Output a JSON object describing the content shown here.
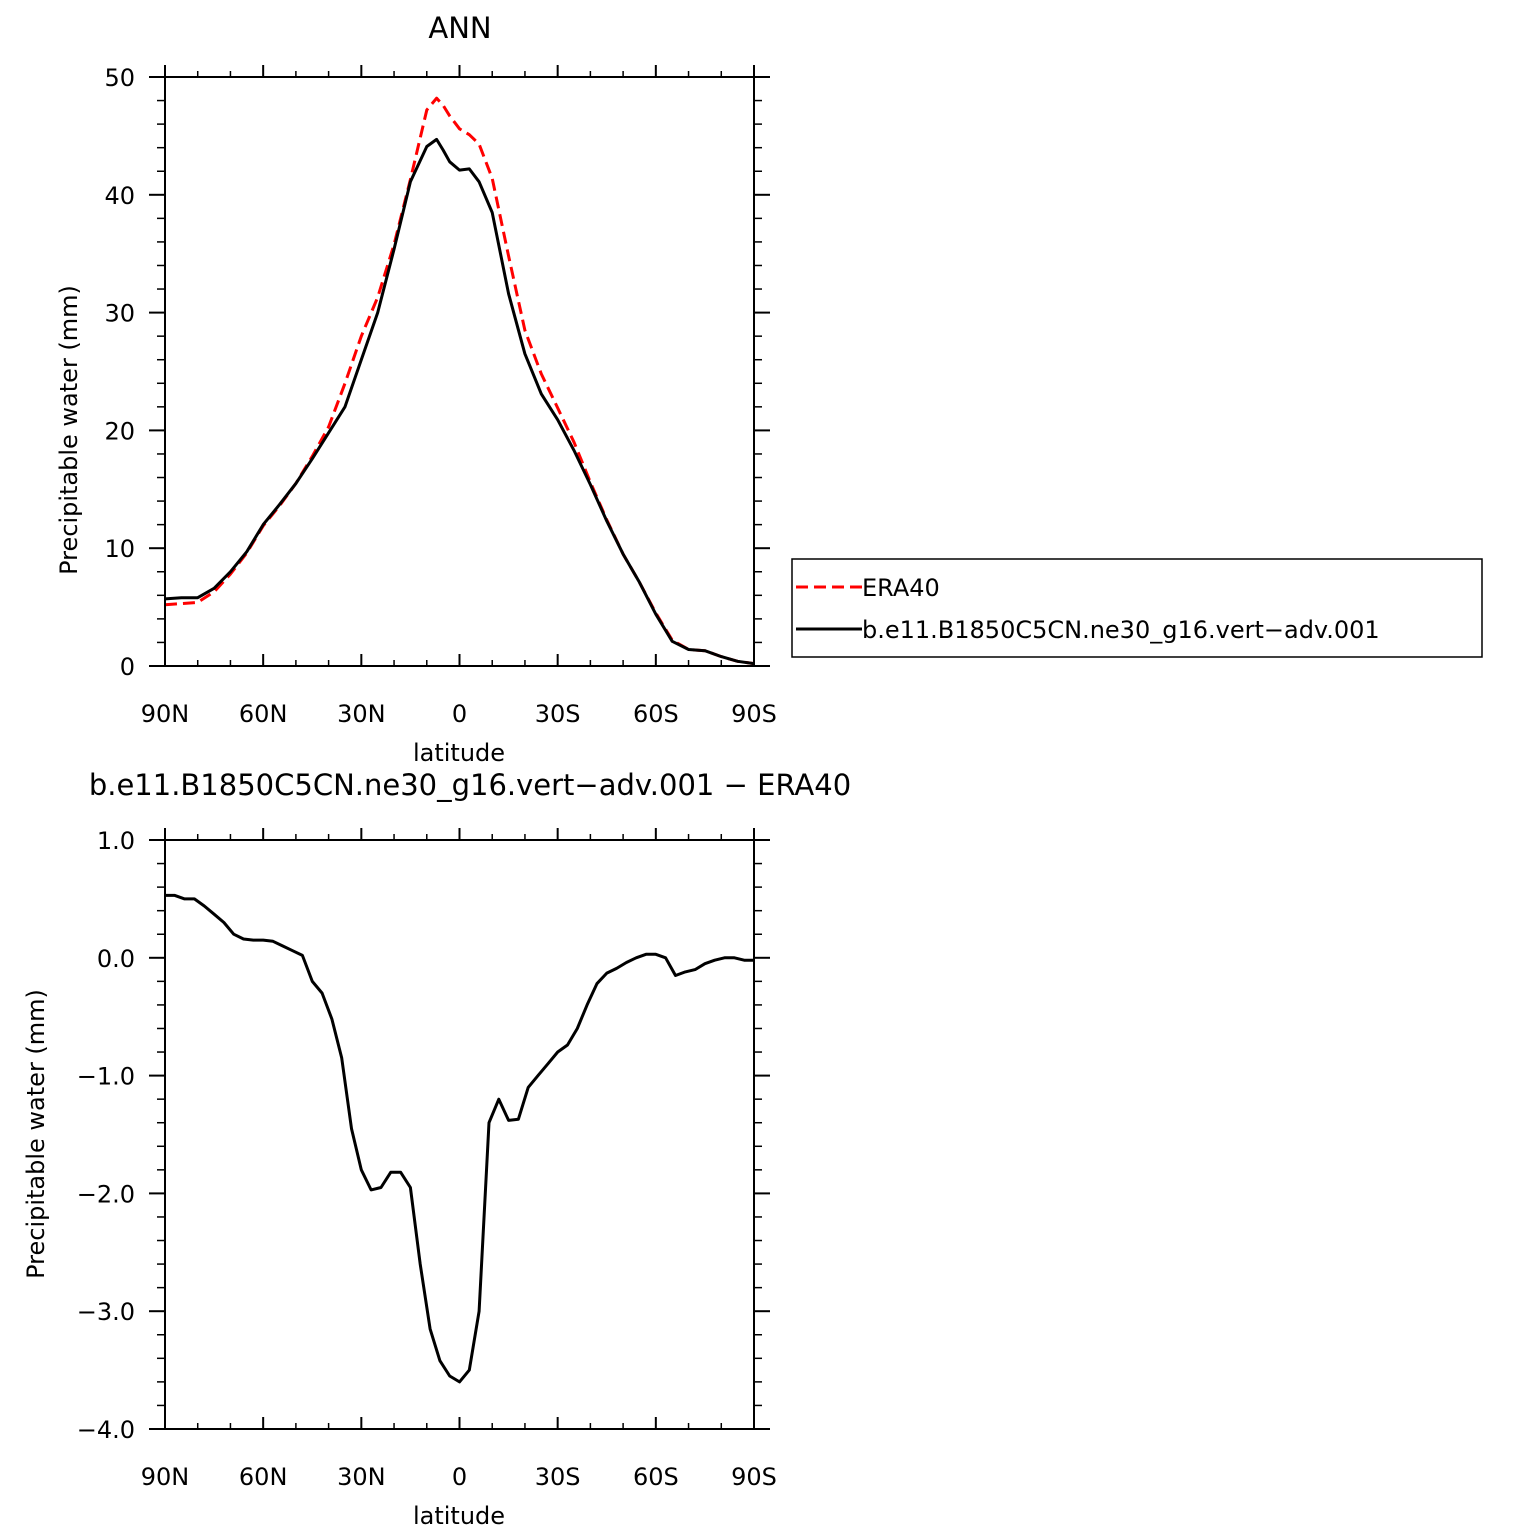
{
  "chart_data": [
    {
      "type": "line",
      "title": "ANN",
      "xlabel": "latitude",
      "ylabel": "Precipitable water (mm)",
      "xlim": [
        90,
        -90
      ],
      "ylim": [
        0,
        50
      ],
      "xticks": [
        90,
        60,
        30,
        0,
        -30,
        -60,
        -90
      ],
      "xtick_labels": [
        "90N",
        "60N",
        "30N",
        "0",
        "30S",
        "60S",
        "90S"
      ],
      "yticks": [
        0,
        10,
        20,
        30,
        40,
        50
      ],
      "ytick_labels": [
        "0",
        "10",
        "20",
        "30",
        "40",
        "50"
      ],
      "legend": "outside right",
      "grid": false,
      "series": [
        {
          "name": "ERA40",
          "color": "#ff0000",
          "dash": "dashed",
          "x": [
            90,
            85,
            80,
            75,
            70,
            65,
            60,
            55,
            50,
            45,
            40,
            35,
            30,
            25,
            20,
            15,
            10,
            7,
            5,
            3,
            0,
            -3,
            -6,
            -10,
            -15,
            -20,
            -25,
            -30,
            -35,
            -40,
            -45,
            -50,
            -55,
            -60,
            -65,
            -70,
            -75,
            -80,
            -85,
            -90
          ],
          "values": [
            5.2,
            5.3,
            5.4,
            6.3,
            7.8,
            9.6,
            11.9,
            13.6,
            15.5,
            17.8,
            20.3,
            24.0,
            28.0,
            31.3,
            35.8,
            41.3,
            47.2,
            48.2,
            47.6,
            46.7,
            45.6,
            45.1,
            44.3,
            41.4,
            34.8,
            28.5,
            24.8,
            21.9,
            19.0,
            15.6,
            12.4,
            9.5,
            7.1,
            4.5,
            2.2,
            1.4,
            1.3,
            0.8,
            0.4,
            0.2
          ]
        },
        {
          "name": "b.e11.B1850C5CN.ne30_g16.vert−adv.001",
          "color": "#000000",
          "dash": "solid",
          "x": [
            90,
            85,
            80,
            75,
            70,
            65,
            60,
            55,
            50,
            45,
            40,
            35,
            30,
            25,
            20,
            15,
            10,
            7,
            5,
            3,
            0,
            -3,
            -6,
            -10,
            -15,
            -20,
            -25,
            -30,
            -35,
            -40,
            -45,
            -50,
            -55,
            -60,
            -65,
            -70,
            -75,
            -80,
            -85,
            -90
          ],
          "values": [
            5.7,
            5.8,
            5.8,
            6.6,
            8.0,
            9.7,
            12.0,
            13.7,
            15.5,
            17.6,
            19.8,
            22.0,
            26.0,
            30.0,
            35.4,
            41.1,
            44.1,
            44.7,
            43.8,
            42.8,
            42.1,
            42.2,
            41.1,
            38.5,
            31.6,
            26.5,
            23.1,
            20.9,
            18.3,
            15.4,
            12.3,
            9.5,
            7.1,
            4.4,
            2.1,
            1.4,
            1.3,
            0.8,
            0.4,
            0.2
          ]
        }
      ]
    },
    {
      "type": "line",
      "title": "b.e11.B1850C5CN.ne30_g16.vert−adv.001  −  ERA40",
      "xlabel": "latitude",
      "ylabel": "Precipitable water (mm)",
      "xlim": [
        90,
        -90
      ],
      "ylim": [
        -4.0,
        1.0
      ],
      "xticks": [
        90,
        60,
        30,
        0,
        -30,
        -60,
        -90
      ],
      "xtick_labels": [
        "90N",
        "60N",
        "30N",
        "0",
        "30S",
        "60S",
        "90S"
      ],
      "yticks": [
        1.0,
        0.0,
        -1.0,
        -2.0,
        -3.0,
        -4.0
      ],
      "ytick_labels": [
        "1.0",
        "0.0",
        "−1.0",
        "−2.0",
        "−3.0",
        "−4.0"
      ],
      "grid": false,
      "series": [
        {
          "name": "",
          "color": "#000000",
          "dash": "solid",
          "x": [
            90,
            87,
            84,
            81,
            78,
            75,
            72,
            69,
            66,
            63,
            60,
            57,
            54,
            51,
            48,
            45,
            42,
            39,
            36,
            33,
            30,
            27,
            24,
            21,
            18,
            15,
            12,
            9,
            6,
            3,
            0,
            -3,
            -6,
            -9,
            -12,
            -15,
            -18,
            -21,
            -24,
            -27,
            -30,
            -33,
            -36,
            -39,
            -42,
            -45,
            -48,
            -51,
            -54,
            -57,
            -60,
            -63,
            -66,
            -69,
            -72,
            -75,
            -78,
            -81,
            -84,
            -87,
            -90
          ],
          "values": [
            0.53,
            0.53,
            0.5,
            0.5,
            0.44,
            0.37,
            0.3,
            0.2,
            0.16,
            0.15,
            0.15,
            0.14,
            0.1,
            0.06,
            0.02,
            -0.2,
            -0.3,
            -0.52,
            -0.85,
            -1.45,
            -1.8,
            -1.97,
            -1.95,
            -1.82,
            -1.82,
            -1.95,
            -2.6,
            -3.15,
            -3.42,
            -3.55,
            -3.6,
            -3.5,
            -3.0,
            -1.4,
            -1.2,
            -1.38,
            -1.37,
            -1.1,
            -1.0,
            -0.9,
            -0.8,
            -0.74,
            -0.6,
            -0.4,
            -0.22,
            -0.13,
            -0.09,
            -0.04,
            0.0,
            0.03,
            0.03,
            0.0,
            -0.15,
            -0.12,
            -0.1,
            -0.05,
            -0.02,
            0.0,
            0.0,
            -0.02,
            -0.02
          ]
        }
      ]
    }
  ]
}
